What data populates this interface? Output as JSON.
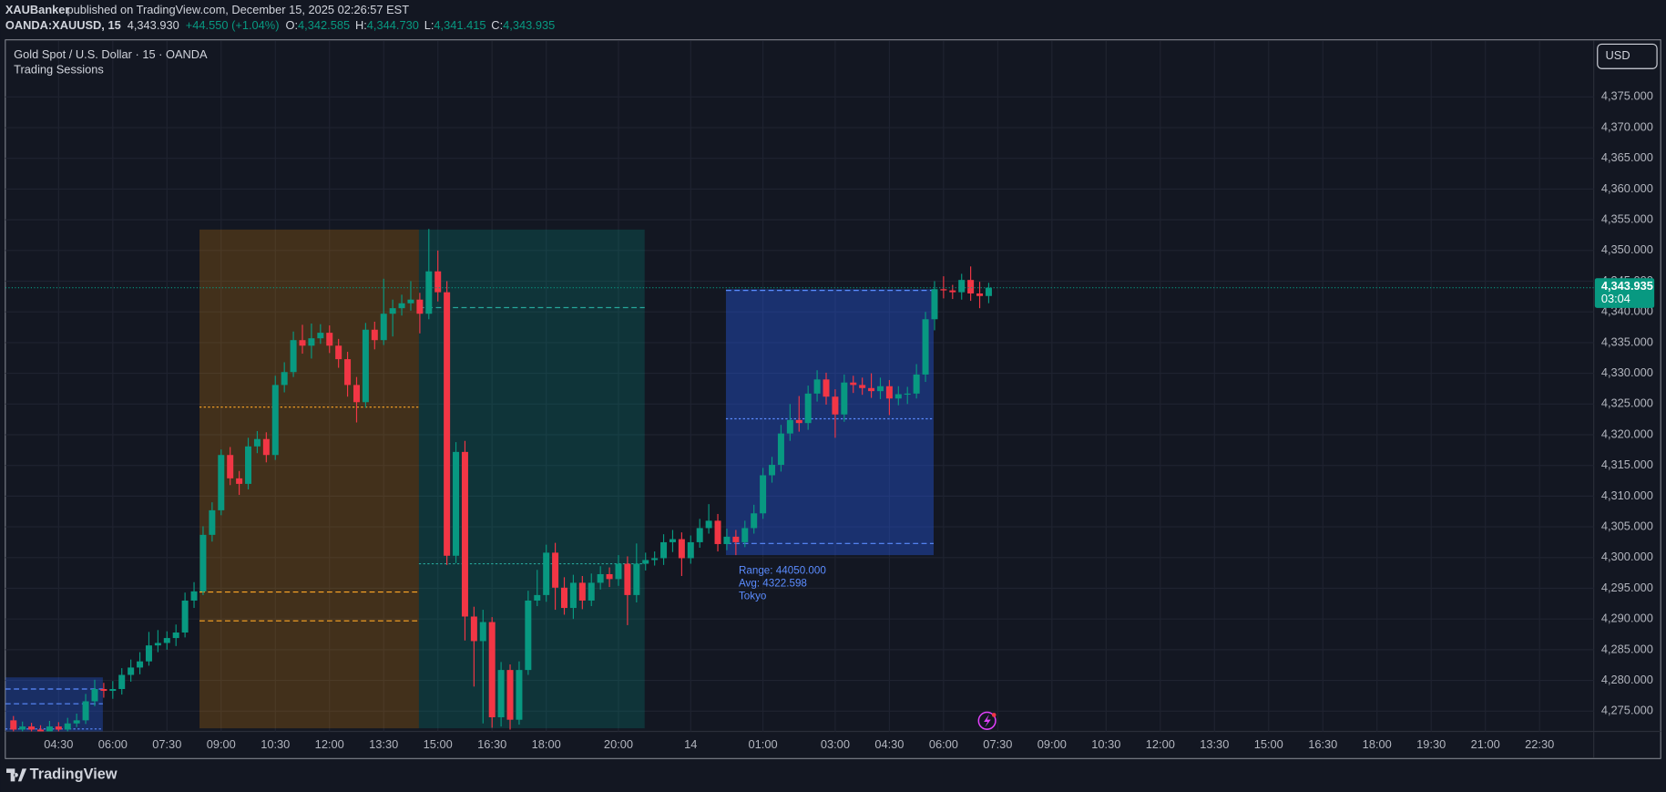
{
  "header": {
    "author": "XAUBanker",
    "published": "published on TradingView.com, December 15, 2025 02:26:57 EST",
    "symbol": "OANDA:XAUUSD, 15",
    "last": "4,343.930",
    "change": "+44.550 (+1.04%)",
    "ohlc": [
      {
        "key": "O:",
        "value": "4,342.585"
      },
      {
        "key": "H:",
        "value": "4,344.730"
      },
      {
        "key": "L:",
        "value": "4,341.415"
      },
      {
        "key": "C:",
        "value": "4,343.935"
      }
    ]
  },
  "chart_data": {
    "type": "candlestick",
    "title": "Gold Spot / U.S. Dollar · 15 · OANDA",
    "subtitle": "Trading Sessions",
    "currency": "USD",
    "up_color": "#089981",
    "down_color": "#f23645",
    "grid": true,
    "open": [
      4273.5,
      4272.0,
      4272.5,
      4272.0,
      4271.5,
      4272.5,
      4272.0,
      4273.0,
      4273.5,
      4276.6,
      4278.6,
      4278.3,
      4278.6,
      4280.9,
      4282.1,
      4283.1,
      4285.7,
      4286.1,
      4286.9,
      4287.8,
      4293.0,
      4294.5,
      4303.7,
      4307.7,
      4316.7,
      4312.9,
      4312.0,
      4318.1,
      4319.3,
      4316.7,
      4328.1,
      4330.2,
      4335.4,
      4334.5,
      4335.7,
      4336.6,
      4334.5,
      4332.3,
      4328.1,
      4325.3,
      4337.1,
      4335.4,
      4339.7,
      4340.6,
      4341.4,
      4342.0,
      4339.7,
      4346.6,
      4343.2,
      4300.3,
      4317.2,
      4290.4,
      4286.4,
      4289.5,
      4274.0,
      4281.7,
      4273.6,
      4281.7,
      4293.0,
      4293.9,
      4300.8,
      4295.1,
      4291.8,
      4295.9,
      4293.0,
      4295.9,
      4297.3,
      4296.5,
      4299.0,
      4293.9,
      4299.0,
      4299.6,
      4299.9,
      4302.5,
      4303.0,
      4299.9,
      4302.5,
      4304.8,
      4306.0,
      4302.2,
      4303.4,
      4302.5,
      4304.8,
      4307.2,
      4313.4,
      4315.1,
      4320.2,
      4322.4,
      4321.9,
      4326.7,
      4329.0,
      4326.2,
      4323.3,
      4328.5,
      4328.1,
      4327.6,
      4327.1,
      4327.9,
      4325.9,
      4326.6,
      4326.7,
      4329.8,
      4338.8,
      4343.7,
      4343.5,
      4343.2,
      4345.2,
      4343.0,
      4342.585
    ],
    "high": [
      4274.2,
      4273.3,
      4273.1,
      4272.7,
      4273.4,
      4273.2,
      4273.9,
      4274.6,
      4277.8,
      4280.1,
      4279.6,
      4279.9,
      4282.0,
      4283.4,
      4284.6,
      4287.9,
      4288.2,
      4288.0,
      4289.1,
      4294.3,
      4296.0,
      4305.1,
      4309.0,
      4317.6,
      4318.0,
      4314.1,
      4319.5,
      4320.6,
      4320.4,
      4329.6,
      4331.8,
      4336.8,
      4337.9,
      4338.1,
      4338.0,
      4337.8,
      4335.6,
      4333.5,
      4329.4,
      4338.2,
      4338.4,
      4345.4,
      4342.0,
      4342.8,
      4345.0,
      4343.1,
      4353.5,
      4350.0,
      4345.0,
      4318.8,
      4319.0,
      4292.0,
      4291.5,
      4290.3,
      4283.0,
      4282.6,
      4283.1,
      4294.6,
      4298.0,
      4302.1,
      4302.4,
      4296.8,
      4297.2,
      4297.0,
      4297.4,
      4298.6,
      4298.4,
      4300.4,
      4300.2,
      4302.3,
      4300.8,
      4301.0,
      4303.8,
      4304.5,
      4304.1,
      4303.6,
      4306.3,
      4308.7,
      4307.1,
      4304.7,
      4304.5,
      4306.0,
      4308.6,
      4314.6,
      4316.4,
      4321.6,
      4325.0,
      4326.3,
      4328.0,
      4330.5,
      4330.1,
      4327.4,
      4329.8,
      4329.6,
      4329.3,
      4330.0,
      4329.3,
      4328.9,
      4327.9,
      4327.8,
      4331.5,
      4340.0,
      4345.0,
      4345.8,
      4344.4,
      4346.2,
      4347.4,
      4344.9,
      4344.73
    ],
    "low": [
      4271.3,
      4271.4,
      4271.2,
      4270.8,
      4270.9,
      4271.2,
      4271.3,
      4272.4,
      4272.9,
      4275.8,
      4277.2,
      4277.0,
      4277.7,
      4279.8,
      4281.0,
      4282.4,
      4284.6,
      4285.0,
      4285.6,
      4287.0,
      4291.8,
      4293.9,
      4302.6,
      4306.9,
      4311.8,
      4310.2,
      4311.1,
      4317.0,
      4315.5,
      4315.9,
      4326.9,
      4329.4,
      4333.2,
      4332.4,
      4334.8,
      4333.3,
      4330.9,
      4326.2,
      4322.0,
      4324.4,
      4333.9,
      4334.6,
      4336.0,
      4339.4,
      4340.2,
      4336.5,
      4338.8,
      4341.7,
      4298.8,
      4299.1,
      4286.5,
      4279.0,
      4273.0,
      4272.3,
      4272.5,
      4272.0,
      4272.8,
      4280.9,
      4292.1,
      4292.8,
      4291.5,
      4290.7,
      4290.0,
      4291.6,
      4292.1,
      4294.8,
      4295.2,
      4295.4,
      4289.0,
      4292.7,
      4297.9,
      4298.7,
      4298.8,
      4300.9,
      4297.0,
      4299.0,
      4301.6,
      4303.9,
      4301.0,
      4301.2,
      4300.4,
      4301.7,
      4303.9,
      4306.3,
      4312.2,
      4314.0,
      4319.0,
      4320.5,
      4320.8,
      4325.4,
      4324.9,
      4319.5,
      4322.1,
      4326.8,
      4326.5,
      4326.0,
      4325.8,
      4323.2,
      4324.8,
      4325.0,
      4325.9,
      4328.6,
      4337.0,
      4342.2,
      4342.1,
      4342.0,
      4341.8,
      4340.6,
      4341.415
    ],
    "close": [
      4272.0,
      4272.5,
      4272.0,
      4271.5,
      4272.5,
      4272.0,
      4273.0,
      4273.5,
      4276.6,
      4278.6,
      4278.3,
      4278.6,
      4280.9,
      4282.1,
      4283.1,
      4285.7,
      4286.1,
      4286.9,
      4287.8,
      4293.0,
      4294.5,
      4303.7,
      4307.7,
      4316.7,
      4312.9,
      4312.0,
      4318.1,
      4319.3,
      4316.7,
      4328.1,
      4330.2,
      4335.4,
      4334.5,
      4335.7,
      4336.6,
      4334.5,
      4332.3,
      4328.1,
      4325.3,
      4337.1,
      4335.4,
      4339.7,
      4340.6,
      4341.4,
      4342.0,
      4339.7,
      4346.6,
      4343.2,
      4300.3,
      4317.2,
      4290.4,
      4286.4,
      4289.5,
      4274.0,
      4281.7,
      4273.6,
      4281.7,
      4293.0,
      4293.9,
      4300.8,
      4295.1,
      4291.8,
      4295.9,
      4293.0,
      4295.9,
      4297.3,
      4296.5,
      4299.0,
      4293.9,
      4299.0,
      4299.6,
      4299.9,
      4302.5,
      4303.0,
      4299.9,
      4302.5,
      4304.8,
      4306.0,
      4302.2,
      4303.4,
      4302.5,
      4304.8,
      4307.2,
      4313.4,
      4315.1,
      4320.2,
      4322.4,
      4321.9,
      4326.7,
      4329.0,
      4326.2,
      4323.3,
      4328.5,
      4328.1,
      4327.6,
      4327.1,
      4327.9,
      4325.9,
      4326.6,
      4326.7,
      4329.8,
      4338.8,
      4343.7,
      4343.5,
      4343.2,
      4345.2,
      4343.0,
      4342.585,
      4343.935
    ],
    "xlim": [
      -0.9,
      175
    ],
    "xticks": [
      {
        "value": 5,
        "label": "04:30"
      },
      {
        "value": 11,
        "label": "06:00"
      },
      {
        "value": 17,
        "label": "07:30"
      },
      {
        "value": 23,
        "label": "09:00"
      },
      {
        "value": 29,
        "label": "10:30"
      },
      {
        "value": 35,
        "label": "12:00"
      },
      {
        "value": 41,
        "label": "13:30"
      },
      {
        "value": 47,
        "label": "15:00"
      },
      {
        "value": 53,
        "label": "16:30"
      },
      {
        "value": 59,
        "label": "18:00"
      },
      {
        "value": 67,
        "label": "20:00"
      },
      {
        "value": 75,
        "label": "14"
      },
      {
        "value": 83,
        "label": "01:00"
      },
      {
        "value": 91,
        "label": "03:00"
      },
      {
        "value": 97,
        "label": "04:30"
      },
      {
        "value": 103,
        "label": "06:00"
      },
      {
        "value": 109,
        "label": "07:30"
      },
      {
        "value": 115,
        "label": "09:00"
      },
      {
        "value": 121,
        "label": "10:30"
      },
      {
        "value": 127,
        "label": "12:00"
      },
      {
        "value": 133,
        "label": "13:30"
      },
      {
        "value": 139,
        "label": "15:00"
      },
      {
        "value": 145,
        "label": "16:30"
      },
      {
        "value": 151,
        "label": "18:00"
      },
      {
        "value": 157,
        "label": "19:30"
      },
      {
        "value": 163,
        "label": "21:00"
      },
      {
        "value": 169,
        "label": "22:30"
      }
    ],
    "ylim": [
      4271.7,
      4384.2
    ],
    "yticks": [
      {
        "value": 4275,
        "label": "4,275.000"
      },
      {
        "value": 4280,
        "label": "4,280.000"
      },
      {
        "value": 4285,
        "label": "4,285.000"
      },
      {
        "value": 4290,
        "label": "4,290.000"
      },
      {
        "value": 4295,
        "label": "4,295.000"
      },
      {
        "value": 4300,
        "label": "4,300.000"
      },
      {
        "value": 4305,
        "label": "4,305.000"
      },
      {
        "value": 4310,
        "label": "4,310.000"
      },
      {
        "value": 4315,
        "label": "4,315.000"
      },
      {
        "value": 4320,
        "label": "4,320.000"
      },
      {
        "value": 4325,
        "label": "4,325.000"
      },
      {
        "value": 4330,
        "label": "4,330.000"
      },
      {
        "value": 4335,
        "label": "4,335.000"
      },
      {
        "value": 4340,
        "label": "4,340.000"
      },
      {
        "value": 4345,
        "label": "4,345.000"
      },
      {
        "value": 4350,
        "label": "4,350.000"
      },
      {
        "value": 4355,
        "label": "4,355.000"
      },
      {
        "value": 4360,
        "label": "4,360.000"
      },
      {
        "value": 4365,
        "label": "4,365.000"
      },
      {
        "value": 4370,
        "label": "4,370.000"
      },
      {
        "value": 4375,
        "label": "4,375.000"
      }
    ],
    "sessions": [
      {
        "color": "rgba(41,98,255,0.3)",
        "line_color": "#5b8cff",
        "start": -0.9,
        "end": 9.9,
        "top": 4280.5,
        "bottom": 4271.7,
        "levels": [
          {
            "value": 4278.6,
            "style": "dashed"
          },
          {
            "value": 4276.2,
            "style": "dashed"
          },
          {
            "value": 4272.1,
            "style": "dotted"
          }
        ]
      },
      {
        "color": "rgba(255,152,0,0.2)",
        "line_color": "#ffa726",
        "start": 20.6,
        "end": 44.9,
        "top": 4353.4,
        "bottom": 4272.2,
        "levels": [
          {
            "value": 4324.5,
            "style": "dotted"
          },
          {
            "value": 4294.4,
            "style": "dashed"
          },
          {
            "value": 4289.7,
            "style": "dashed"
          }
        ]
      },
      {
        "color": "rgba(0,170,150,0.2)",
        "line_color": "#26a69a",
        "start": 44.9,
        "end": 69.9,
        "top": 4353.4,
        "bottom": 4272.2,
        "levels": [
          {
            "value": 4340.7,
            "style": "dashed"
          },
          {
            "value": 4299.0,
            "style": "dotted"
          }
        ]
      },
      {
        "color": "rgba(41,98,255,0.35)",
        "line_color": "#5b8cff",
        "start": 78.9,
        "end": 101.9,
        "top": 4343.7,
        "bottom": 4300.4,
        "levels": [
          {
            "value": 4343.5,
            "style": "dashed"
          },
          {
            "value": 4322.598,
            "style": "dotted"
          },
          {
            "value": 4302.3,
            "style": "dashed"
          }
        ],
        "labels": [
          "Range: 44050.000",
          "Avg: 4322.598",
          "Tokyo"
        ]
      }
    ],
    "price_tag": "4,343.935",
    "countdown": "03:04"
  },
  "footer": {
    "brand": "TradingView"
  }
}
